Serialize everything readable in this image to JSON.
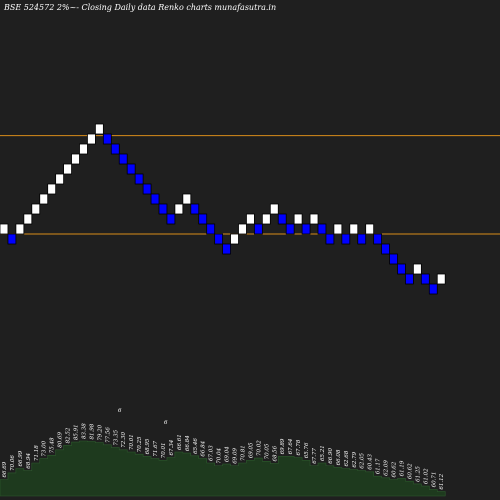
{
  "chart_data": {
    "type": "renko",
    "title": "BSE 524572  2%~-  Closing Daily data  Renko  charts munafasutra.in",
    "colors": {
      "background": "#1f1f1f",
      "up_brick": "#ffffff",
      "down_brick": "#0000ff",
      "reference_line": "#d98c1a",
      "volume_area": "#1e3a1e"
    },
    "reference_lines": [
      79.0,
      67.2
    ],
    "bricks": [
      {
        "dir": "up",
        "low": 67.2,
        "high": 68.4
      },
      {
        "dir": "down",
        "low": 66.0,
        "high": 67.2
      },
      {
        "dir": "up",
        "low": 67.2,
        "high": 68.4
      },
      {
        "dir": "up",
        "low": 68.4,
        "high": 69.6
      },
      {
        "dir": "up",
        "low": 69.6,
        "high": 70.8
      },
      {
        "dir": "up",
        "low": 70.8,
        "high": 72.0
      },
      {
        "dir": "up",
        "low": 72.0,
        "high": 73.2
      },
      {
        "dir": "up",
        "low": 73.2,
        "high": 74.4
      },
      {
        "dir": "up",
        "low": 74.4,
        "high": 75.6
      },
      {
        "dir": "up",
        "low": 75.6,
        "high": 76.8
      },
      {
        "dir": "up",
        "low": 76.8,
        "high": 78.0
      },
      {
        "dir": "up",
        "low": 78.0,
        "high": 79.2
      },
      {
        "dir": "up",
        "low": 79.2,
        "high": 80.4
      },
      {
        "dir": "down",
        "low": 78.0,
        "high": 79.2
      },
      {
        "dir": "down",
        "low": 76.8,
        "high": 78.0
      },
      {
        "dir": "down",
        "low": 75.6,
        "high": 76.8
      },
      {
        "dir": "down",
        "low": 74.4,
        "high": 75.6
      },
      {
        "dir": "down",
        "low": 73.2,
        "high": 74.4
      },
      {
        "dir": "down",
        "low": 72.0,
        "high": 73.2
      },
      {
        "dir": "down",
        "low": 70.8,
        "high": 72.0
      },
      {
        "dir": "down",
        "low": 69.6,
        "high": 70.8
      },
      {
        "dir": "down",
        "low": 68.4,
        "high": 69.6
      },
      {
        "dir": "up",
        "low": 69.6,
        "high": 70.8
      },
      {
        "dir": "up",
        "low": 70.8,
        "high": 72.0
      },
      {
        "dir": "down",
        "low": 69.6,
        "high": 70.8
      },
      {
        "dir": "down",
        "low": 68.4,
        "high": 69.6
      },
      {
        "dir": "down",
        "low": 67.2,
        "high": 68.4
      },
      {
        "dir": "down",
        "low": 66.0,
        "high": 67.2
      },
      {
        "dir": "down",
        "low": 64.8,
        "high": 66.0
      },
      {
        "dir": "up",
        "low": 66.0,
        "high": 67.2
      },
      {
        "dir": "up",
        "low": 67.2,
        "high": 68.4
      },
      {
        "dir": "up",
        "low": 68.4,
        "high": 69.6
      },
      {
        "dir": "down",
        "low": 67.2,
        "high": 68.4
      },
      {
        "dir": "up",
        "low": 68.4,
        "high": 69.6
      },
      {
        "dir": "up",
        "low": 69.6,
        "high": 70.8
      },
      {
        "dir": "down",
        "low": 68.4,
        "high": 69.6
      },
      {
        "dir": "down",
        "low": 67.2,
        "high": 68.4
      },
      {
        "dir": "up",
        "low": 68.4,
        "high": 69.6
      },
      {
        "dir": "down",
        "low": 67.2,
        "high": 68.4
      },
      {
        "dir": "up",
        "low": 68.4,
        "high": 69.6
      },
      {
        "dir": "down",
        "low": 67.2,
        "high": 68.4
      },
      {
        "dir": "down",
        "low": 66.0,
        "high": 67.2
      },
      {
        "dir": "up",
        "low": 67.2,
        "high": 68.4
      },
      {
        "dir": "down",
        "low": 66.0,
        "high": 67.2
      },
      {
        "dir": "up",
        "low": 67.2,
        "high": 68.4
      },
      {
        "dir": "down",
        "low": 66.0,
        "high": 67.2
      },
      {
        "dir": "up",
        "low": 67.2,
        "high": 68.4
      },
      {
        "dir": "down",
        "low": 66.0,
        "high": 67.2
      },
      {
        "dir": "down",
        "low": 64.8,
        "high": 66.0
      },
      {
        "dir": "down",
        "low": 63.6,
        "high": 64.8
      },
      {
        "dir": "down",
        "low": 62.4,
        "high": 63.6
      },
      {
        "dir": "down",
        "low": 61.2,
        "high": 62.4
      },
      {
        "dir": "up",
        "low": 62.4,
        "high": 63.6
      },
      {
        "dir": "down",
        "low": 61.2,
        "high": 62.4
      },
      {
        "dir": "down",
        "low": 60.0,
        "high": 61.2
      },
      {
        "dir": "up",
        "low": 61.2,
        "high": 62.4
      }
    ],
    "volume_levels": [
      0.3,
      0.42,
      0.5,
      0.46,
      0.6,
      0.68,
      0.74,
      0.84,
      0.92,
      0.98,
      1.0,
      0.99,
      0.97,
      0.93,
      0.88,
      0.84,
      0.8,
      0.76,
      0.72,
      0.68,
      0.65,
      0.7,
      0.8,
      0.78,
      0.73,
      0.68,
      0.6,
      0.55,
      0.58,
      0.55,
      0.6,
      0.65,
      0.69,
      0.63,
      0.59,
      0.72,
      0.72,
      0.7,
      0.65,
      0.55,
      0.6,
      0.55,
      0.52,
      0.5,
      0.48,
      0.46,
      0.44,
      0.36,
      0.33,
      0.3,
      0.32,
      0.27,
      0.22,
      0.18,
      0.12,
      0.08
    ],
    "volume_labels": [
      "66.69",
      "70.06",
      "66.99",
      "68.94",
      "71.18",
      "73.00",
      "75.48",
      "80.69",
      "82.52",
      "85.91",
      "83.38",
      "81.98",
      "79.20",
      "77.56",
      "73.35",
      "72.30",
      "70.01",
      "70.25",
      "68.95",
      "71.67",
      "70.01",
      "67.34",
      "66.61",
      "66.84",
      "65.46",
      "66.84",
      "67.03",
      "70.04",
      "69.04",
      "69.09",
      "70.81",
      "69.05",
      "70.02",
      "70.05",
      "68.56",
      "69.89",
      "67.64",
      "67.78",
      "65.76",
      "67.77",
      "65.21",
      "66.90",
      "66.08",
      "62.68",
      "62.79",
      "62.05",
      "60.43",
      "61.17",
      "62.09",
      "60.62",
      "61.19",
      "60.62",
      "61.25",
      "61.02",
      "60.71",
      "61.12"
    ],
    "stray_labels": [
      "6",
      "6"
    ]
  }
}
